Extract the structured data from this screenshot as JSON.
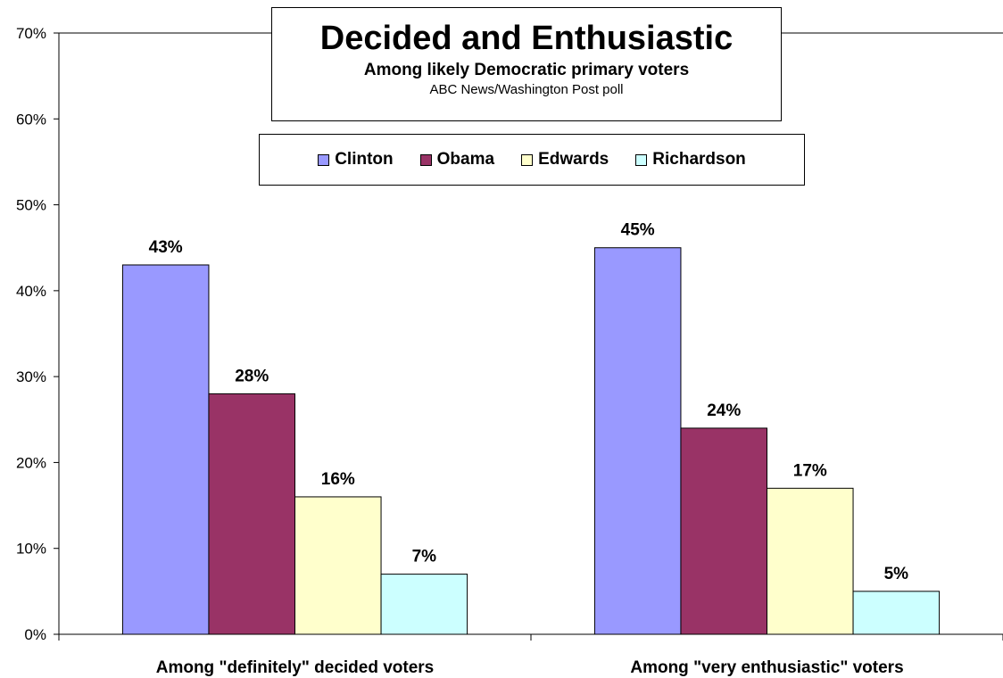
{
  "chart_data": {
    "type": "bar",
    "title": "Decided and Enthusiastic",
    "subtitle": "Among likely Democratic primary voters",
    "source": "ABC News/Washington Post poll",
    "categories": [
      "Among \"definitely\" decided voters",
      "Among \"very enthusiastic\" voters"
    ],
    "series": [
      {
        "name": "Clinton",
        "values": [
          43,
          45
        ],
        "labels": [
          "43%",
          "45%"
        ],
        "color": "#9999ff"
      },
      {
        "name": "Obama",
        "values": [
          28,
          24
        ],
        "labels": [
          "28%",
          "24%"
        ],
        "color": "#993366"
      },
      {
        "name": "Edwards",
        "values": [
          16,
          17
        ],
        "labels": [
          "16%",
          "17%"
        ],
        "color": "#ffffcc"
      },
      {
        "name": "Richardson",
        "values": [
          7,
          5
        ],
        "labels": [
          "7%",
          "5%"
        ],
        "color": "#ccffff"
      }
    ],
    "ylim": [
      0,
      70
    ],
    "yticks": [
      0,
      10,
      20,
      30,
      40,
      50,
      60,
      70
    ],
    "ytick_labels": [
      "0%",
      "10%",
      "20%",
      "30%",
      "40%",
      "50%",
      "60%",
      "70%"
    ],
    "grid": false,
    "legend_position": "top-center"
  }
}
